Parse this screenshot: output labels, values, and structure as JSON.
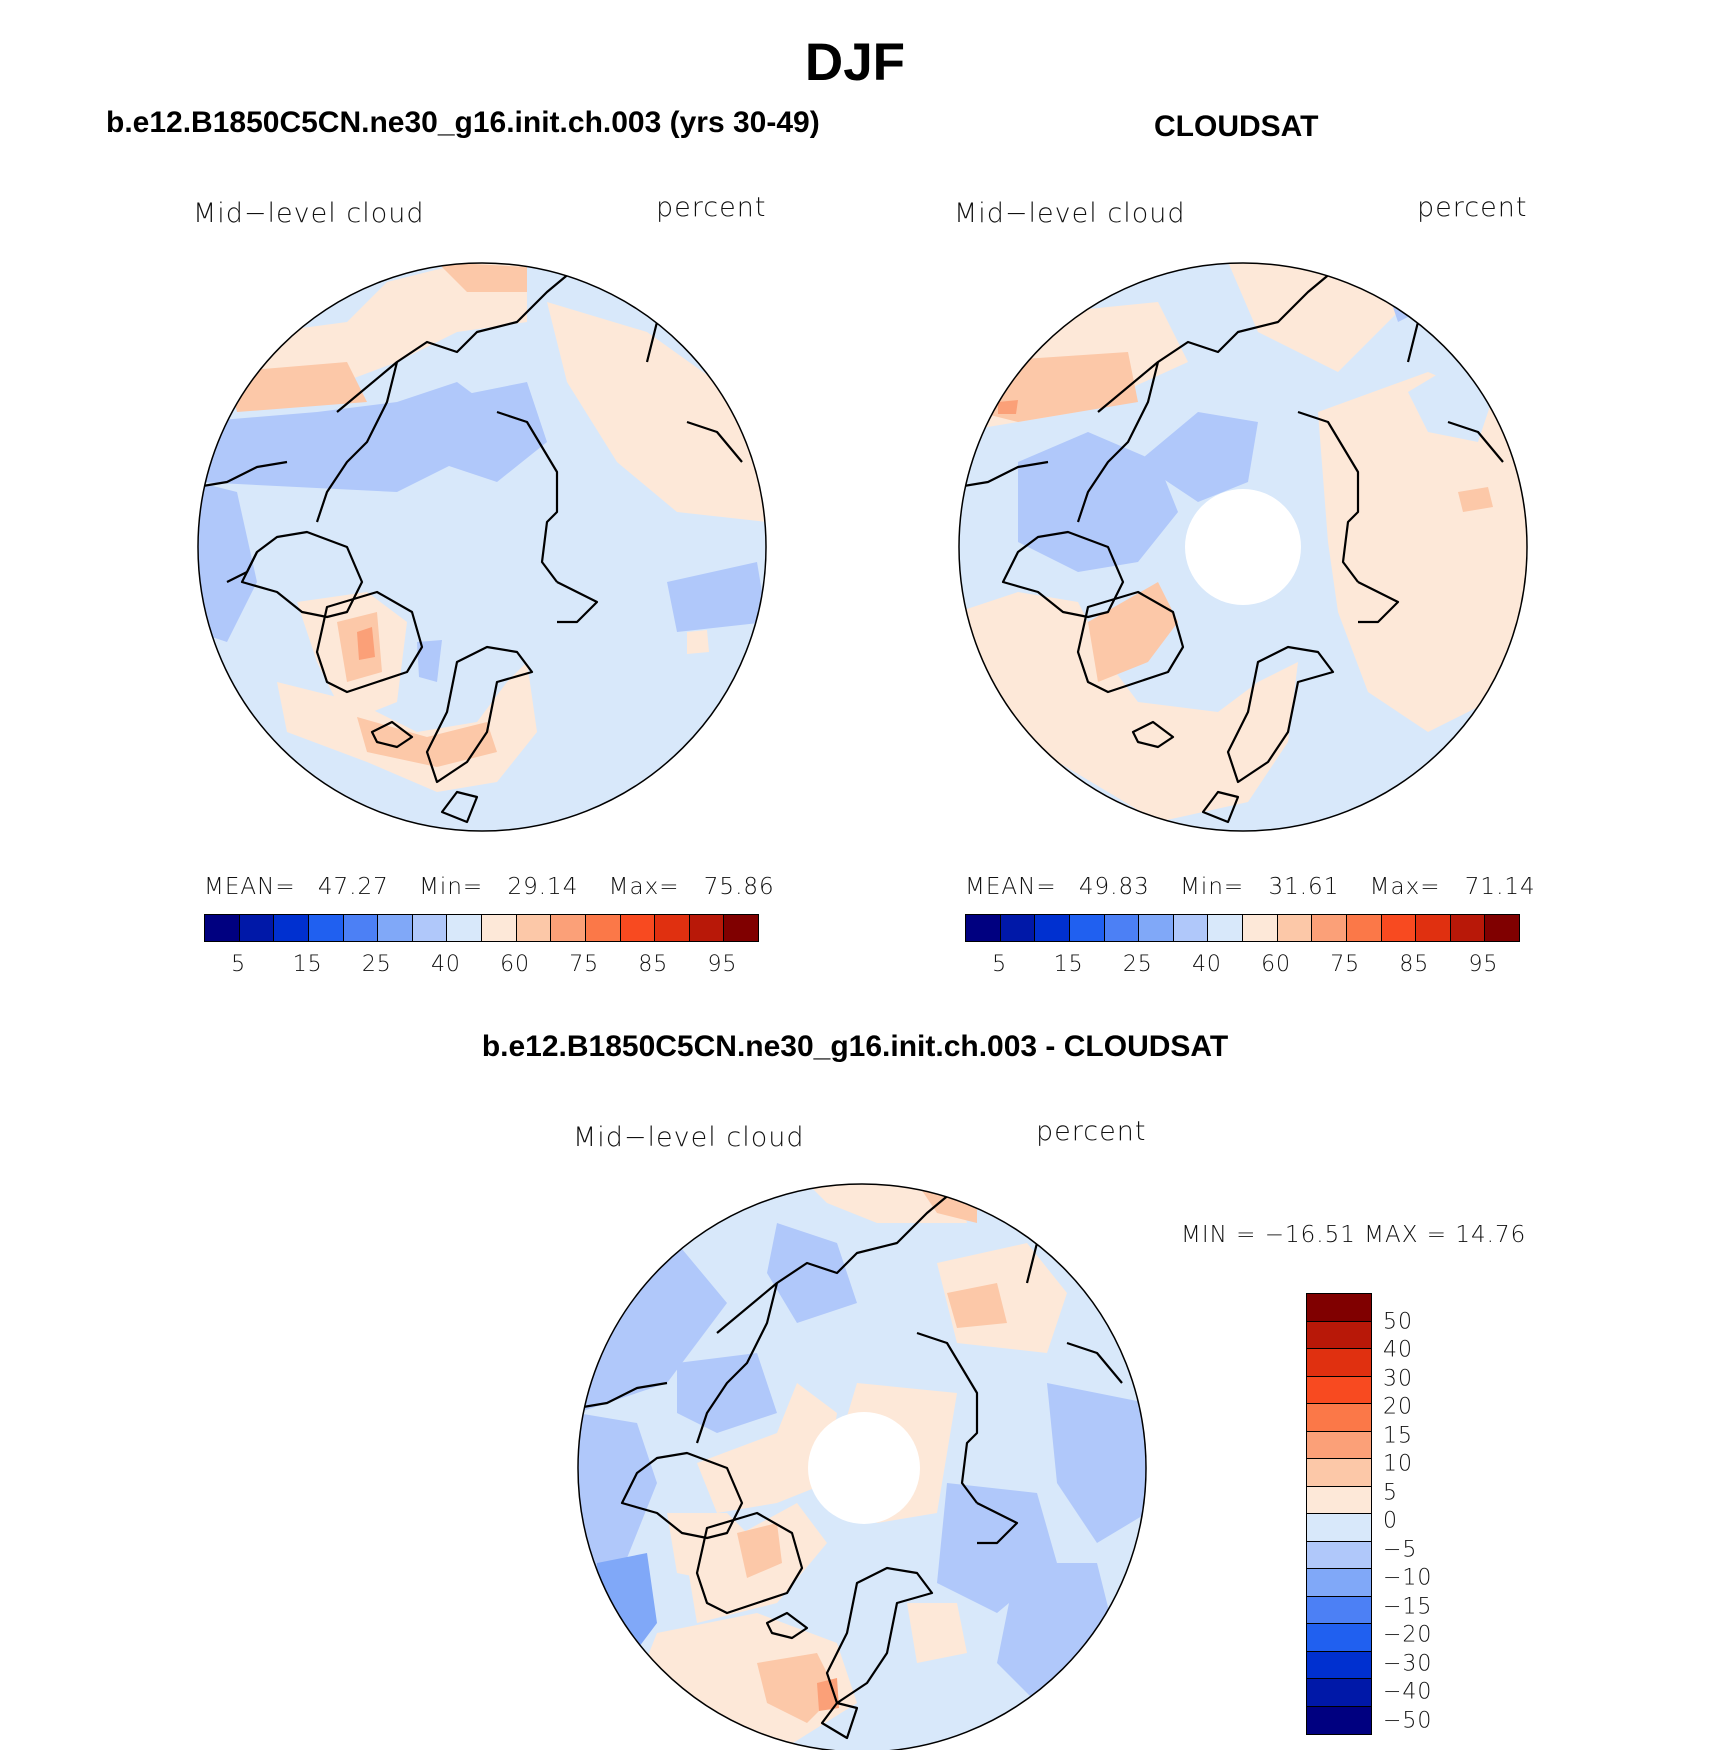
{
  "title": "DJF",
  "panels": [
    {
      "title": "b.e12.B1850C5CN.ne30_g16.init.ch.003 (yrs 30-49)",
      "variable": "Mid−level cloud",
      "units": "percent",
      "stats": {
        "mean_label": "MEAN=",
        "mean": "47.27",
        "min_label": "Min=",
        "min": "29.14",
        "max_label": "Max=",
        "max": "75.86"
      },
      "colorbar_ticks": [
        "5",
        "15",
        "25",
        "40",
        "60",
        "75",
        "85",
        "95"
      ]
    },
    {
      "title": "CLOUDSAT",
      "variable": "Mid−level cloud",
      "units": "percent",
      "stats": {
        "mean_label": "MEAN=",
        "mean": "49.83",
        "min_label": "Min=",
        "min": "31.61",
        "max_label": "Max=",
        "max": "71.14"
      },
      "colorbar_ticks": [
        "5",
        "15",
        "25",
        "40",
        "60",
        "75",
        "85",
        "95"
      ]
    },
    {
      "title": "b.e12.B1850C5CN.ne30_g16.init.ch.003 - CLOUDSAT",
      "variable": "Mid−level cloud",
      "units": "percent",
      "stats_text": "MIN = −16.51 MAX =   14.76",
      "colorbar_ticks": [
        "50",
        "40",
        "30",
        "20",
        "15",
        "10",
        "5",
        "0",
        "−5",
        "−10",
        "−15",
        "−20",
        "−30",
        "−40",
        "−50"
      ]
    }
  ],
  "colors": {
    "seq16": [
      "#000080",
      "#0018a8",
      "#0030d0",
      "#2060f0",
      "#4c80f5",
      "#80a8f8",
      "#b0c8fa",
      "#d8e8fa",
      "#fde8d8",
      "#fcc8a8",
      "#fba078",
      "#fb7848",
      "#f84a20",
      "#e03010",
      "#b81808",
      "#800000"
    ],
    "div16": [
      "#800000",
      "#b81808",
      "#e03010",
      "#f84a20",
      "#fb7848",
      "#fba078",
      "#fcc8a8",
      "#fde8d8",
      "#d8e8fa",
      "#b0c8fa",
      "#80a8f8",
      "#4c80f5",
      "#2060f0",
      "#0030d0",
      "#0018a8",
      "#000080"
    ]
  }
}
